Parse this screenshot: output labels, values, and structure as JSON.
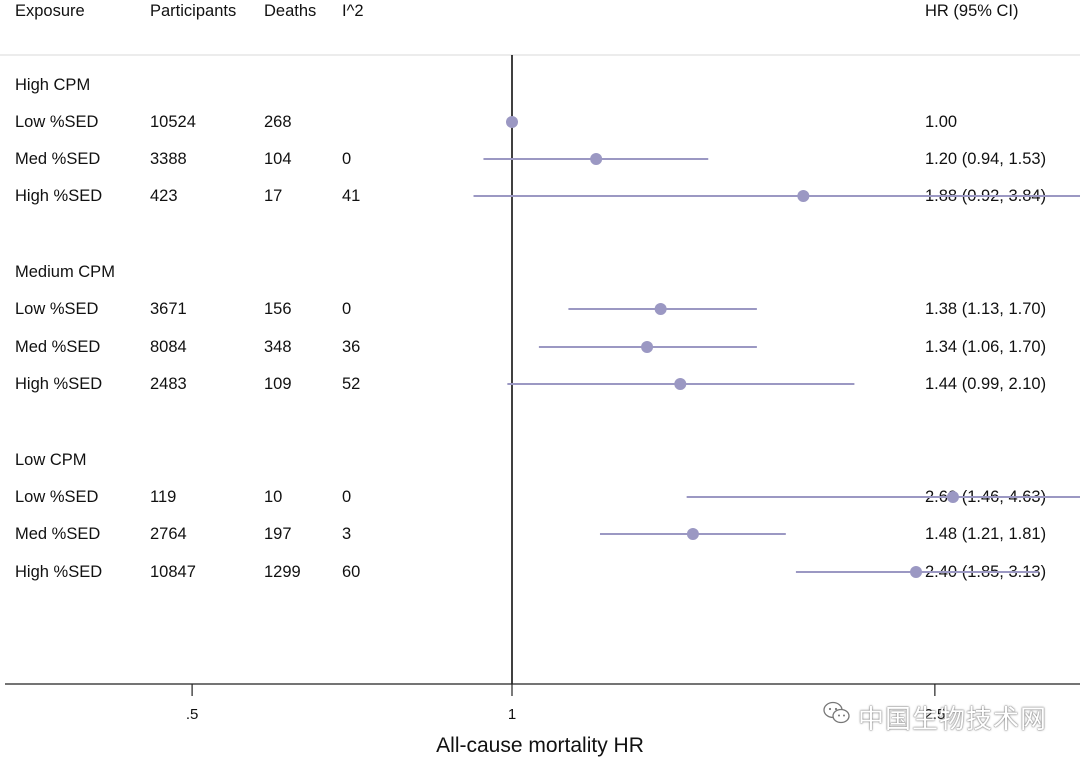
{
  "header": {
    "exposure": "Exposure",
    "participants": "Participants",
    "deaths": "Deaths",
    "i2": "I^2",
    "hr": "HR (95% CI)"
  },
  "groups": [
    {
      "label": "High CPM",
      "rows": [
        {
          "exposure": "Low %SED",
          "participants": "10524",
          "deaths": "268",
          "i2": "",
          "hr_text": "1.00"
        },
        {
          "exposure": "Med %SED",
          "participants": "3388",
          "deaths": "104",
          "i2": "0",
          "hr_text": "1.20 (0.94, 1.53)"
        },
        {
          "exposure": "High %SED",
          "participants": "423",
          "deaths": "17",
          "i2": "41",
          "hr_text": "1.88 (0.92, 3.84)"
        }
      ]
    },
    {
      "label": "Medium CPM",
      "rows": [
        {
          "exposure": "Low %SED",
          "participants": "3671",
          "deaths": "156",
          "i2": "0",
          "hr_text": "1.38 (1.13, 1.70)"
        },
        {
          "exposure": "Med %SED",
          "participants": "8084",
          "deaths": "348",
          "i2": "36",
          "hr_text": "1.34 (1.06, 1.70)"
        },
        {
          "exposure": "High %SED",
          "participants": "2483",
          "deaths": "109",
          "i2": "52",
          "hr_text": "1.44 (0.99, 2.10)"
        }
      ]
    },
    {
      "label": "Low CPM",
      "rows": [
        {
          "exposure": "Low %SED",
          "participants": "119",
          "deaths": "10",
          "i2": "0",
          "hr_text": "2.60 (1.46, 4.63)"
        },
        {
          "exposure": "Med %SED",
          "participants": "2764",
          "deaths": "197",
          "i2": "3",
          "hr_text": "1.48 (1.21, 1.81)"
        },
        {
          "exposure": "High %SED",
          "participants": "10847",
          "deaths": "1299",
          "i2": "60",
          "hr_text": "2.40 (1.85, 3.13)"
        }
      ]
    }
  ],
  "chart_data": {
    "type": "forest",
    "xlabel": "All-cause mortality HR",
    "x_scale": "log",
    "xlim": [
      0.3,
      10
    ],
    "reference_line": 1,
    "ticks": [
      {
        "value": 0.5,
        "label": ".5"
      },
      {
        "value": 1,
        "label": "1"
      },
      {
        "value": 2.5,
        "label": "2.5"
      },
      {
        "value": 5,
        "label": ""
      },
      {
        "value": 7.5,
        "label": ""
      }
    ],
    "points": [
      {
        "group": "High CPM",
        "label": "Low %SED",
        "hr": 1.0,
        "lo": null,
        "hi": null
      },
      {
        "group": "High CPM",
        "label": "Med %SED",
        "hr": 1.2,
        "lo": 0.94,
        "hi": 1.53
      },
      {
        "group": "High CPM",
        "label": "High %SED",
        "hr": 1.88,
        "lo": 0.92,
        "hi": 3.84
      },
      {
        "group": "Medium CPM",
        "label": "Low %SED",
        "hr": 1.38,
        "lo": 1.13,
        "hi": 1.7
      },
      {
        "group": "Medium CPM",
        "label": "Med %SED",
        "hr": 1.34,
        "lo": 1.06,
        "hi": 1.7
      },
      {
        "group": "Medium CPM",
        "label": "High %SED",
        "hr": 1.44,
        "lo": 0.99,
        "hi": 2.1
      },
      {
        "group": "Low CPM",
        "label": "Low %SED",
        "hr": 2.6,
        "lo": 1.46,
        "hi": 4.63
      },
      {
        "group": "Low CPM",
        "label": "Med %SED",
        "hr": 1.48,
        "lo": 1.21,
        "hi": 1.81
      },
      {
        "group": "Low CPM",
        "label": "High %SED",
        "hr": 2.4,
        "lo": 1.85,
        "hi": 3.13
      }
    ],
    "colors": {
      "marker": "#9b98c3",
      "ci_line": "#9b98c3",
      "axis": "#222222"
    }
  },
  "watermark": "中国生物技术网",
  "watermark_icon": "wechat-icon"
}
